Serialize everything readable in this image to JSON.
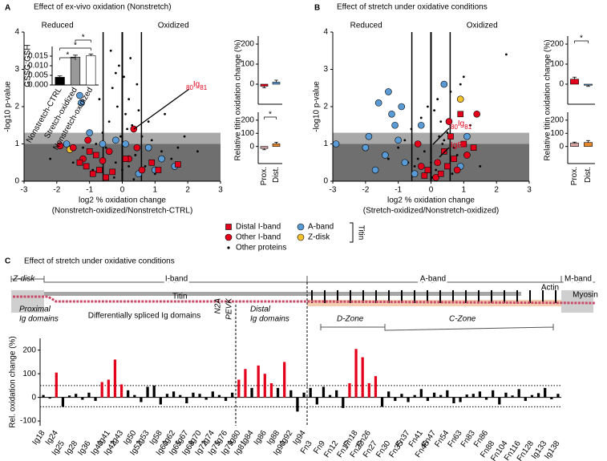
{
  "chart_data": [
    {
      "type": "scatter",
      "panel": "A",
      "title": "Effect of ex-vivo oxidation (Nonstretch)",
      "xlabel": "log2 % oxidation change",
      "xlabel2": "(Nonstretch-oxidized/Nonstretch-CTRL)",
      "ylabel": "-log10 p-value",
      "annotations": [
        "Reduced",
        "Oxidized"
      ],
      "callouts": [
        [
          "80",
          "Ig",
          "81"
        ]
      ],
      "callout_color": "#e3001b",
      "legend_title": "Titin",
      "xlim": [
        -3,
        3
      ],
      "xticks": [
        -3,
        -2,
        -1,
        0,
        1,
        2,
        3
      ],
      "ylim": [
        0,
        4
      ],
      "yticks": [
        0,
        1,
        2,
        3,
        4
      ],
      "bands": [
        {
          "from": 0,
          "to": 1,
          "color": "#6f6f6f"
        },
        {
          "from": 1,
          "to": 1.3,
          "color": "#a9a9a9"
        }
      ],
      "vlines": [
        -0.585,
        0.585
      ],
      "series": [
        {
          "name": "Distal I-band",
          "color": "#e3001b",
          "marker": "square",
          "x": [
            -1.3,
            -1.1,
            -0.9,
            -0.7,
            -0.5,
            -0.3,
            0.9,
            1.1,
            1.7,
            -0.8,
            -1.0,
            0.1
          ],
          "values": [
            0.5,
            0.4,
            0.2,
            0.3,
            0.1,
            0.25,
            0.5,
            0.3,
            0.45,
            0.7,
            0.8,
            0.6
          ]
        },
        {
          "name": "Other I-band",
          "color": "#e3001b",
          "marker": "circle",
          "x": [
            -1.9,
            -1.5,
            -1.2,
            -0.6,
            -0.4,
            0.2,
            0.45,
            -1.05,
            0.35,
            0.6
          ],
          "values": [
            0.95,
            0.9,
            0.6,
            0.55,
            0.8,
            0.6,
            0.9,
            1.1,
            1.4,
            0.3
          ]
        },
        {
          "name": "A-band",
          "color": "#5b9bd5",
          "marker": "circle",
          "x": [
            -1.3,
            -1.25,
            -1.0,
            -1.7,
            -0.2,
            0.1,
            0.8,
            1.2,
            1.6,
            0.5,
            1.0,
            -0.6
          ],
          "values": [
            2.3,
            2.1,
            1.3,
            1.0,
            1.1,
            1.0,
            0.9,
            0.6,
            0.4,
            0.2,
            0.3,
            1.0
          ]
        },
        {
          "name": "Z-disk",
          "color": "#f2c12e",
          "marker": "circle",
          "x": [
            -1.6
          ],
          "values": [
            0.85
          ]
        },
        {
          "name": "Other proteins",
          "color": "#000000",
          "marker": "dot",
          "x": [
            -0.2,
            -0.1,
            0.05,
            -0.3,
            0.2,
            -0.15,
            0.1,
            -0.4,
            0.3,
            -0.6,
            0.6,
            -0.8,
            0.9,
            -1.2,
            1.2,
            -1.5,
            1.5,
            0,
            -0.2,
            0.2,
            0.4,
            -0.5,
            0.7,
            -0.9,
            1.0,
            -0.05,
            0.15,
            0.5,
            0.8,
            1.9,
            2.3,
            -2.2,
            -0.35,
            0.25,
            1.3,
            -0.7,
            0.45,
            -0.25,
            0.35,
            1.7
          ],
          "values": [
            2.9,
            3.1,
            2.8,
            2.5,
            2.2,
            2.0,
            1.8,
            1.6,
            1.5,
            1.3,
            1.2,
            1.0,
            1.1,
            0.9,
            0.8,
            0.5,
            0.6,
            0.3,
            0.5,
            0.4,
            0.7,
            0.9,
            0.4,
            0.3,
            0.2,
            1.2,
            1.4,
            1.9,
            1.6,
            1.2,
            0.8,
            0.6,
            3.5,
            3.3,
            1.8,
            2.2,
            2.6,
            0.1,
            0.05,
            0.9
          ]
        }
      ]
    },
    {
      "type": "scatter",
      "panel": "B",
      "title": "Effect of stretch under oxidative conditions",
      "xlabel": "log2 % oxidation change",
      "xlabel2": "(Stretch-oxidized/Nonstretch-oxidized)",
      "ylabel": "-log10 p-value",
      "annotations": [
        "Reduced",
        "Oxidized"
      ],
      "callouts": [
        [
          "80",
          "Ig",
          "81"
        ],
        [
          "Ig80"
        ]
      ],
      "callout_color": "#e3001b",
      "xlim": [
        -3,
        3
      ],
      "xticks": [
        -3,
        -2,
        -1,
        0,
        1,
        2,
        3
      ],
      "ylim": [
        0,
        4
      ],
      "yticks": [
        0,
        1,
        2,
        3,
        4
      ],
      "bands": [
        {
          "from": 0,
          "to": 1,
          "color": "#6f6f6f"
        },
        {
          "from": 1,
          "to": 1.3,
          "color": "#a9a9a9"
        }
      ],
      "vlines": [
        -0.585,
        0.585
      ],
      "series": [
        {
          "color": "#e3001b",
          "marker": "square",
          "x": [
            0.9,
            1.0,
            0.7,
            0.5,
            0.3,
            -0.1,
            0.6,
            1.3,
            0.4,
            -0.2
          ],
          "values": [
            1.8,
            1.0,
            0.6,
            0.4,
            0.2,
            0.3,
            1.2,
            0.9,
            0.8,
            0.15
          ]
        },
        {
          "color": "#e3001b",
          "marker": "circle",
          "x": [
            1.4,
            1.1,
            0.8,
            0.15,
            -0.3,
            0.55,
            -0.4,
            0.2
          ],
          "values": [
            1.8,
            0.7,
            0.3,
            0.1,
            0.4,
            1.6,
            1.0,
            0.5
          ]
        },
        {
          "color": "#5b9bd5",
          "marker": "circle",
          "x": [
            -1.6,
            -1.3,
            -0.9,
            -1.2,
            -1.9,
            -1.0,
            -2.0,
            -1.4,
            -0.8,
            -1.7,
            -0.5,
            -2.9,
            -0.3,
            0.4,
            0.9,
            1.1,
            -1.1
          ],
          "values": [
            2.1,
            2.4,
            2.0,
            1.8,
            1.2,
            1.1,
            0.9,
            0.7,
            0.5,
            0.3,
            0.2,
            1.0,
            1.5,
            2.6,
            0.4,
            1.2,
            1.5
          ]
        },
        {
          "color": "#f2c12e",
          "marker": "circle",
          "x": [
            0.9
          ],
          "values": [
            2.2
          ]
        },
        {
          "color": "#000000",
          "marker": "dot",
          "x": [
            2.3,
            0.9,
            0.6,
            0.2,
            -0.3,
            -0.6,
            0.1,
            -0.1,
            0.3,
            0.5,
            -0.8,
            -1.0,
            1.2,
            0.7,
            0.4,
            -0.2,
            0,
            0.15,
            -0.4,
            0.8,
            1.5,
            -1.3,
            -0.5,
            0.25,
            -0.15,
            0.05,
            1.0,
            -0.7,
            0.35,
            0.65
          ],
          "values": [
            3.4,
            2.6,
            2.4,
            2.2,
            1.7,
            1.4,
            1.9,
            2.0,
            1.6,
            1.3,
            1.1,
            0.9,
            1.5,
            0.9,
            1.1,
            0.8,
            0.5,
            0.3,
            0.6,
            0.7,
            0.4,
            0.6,
            0.4,
            1.2,
            0.2,
            0.1,
            2.8,
            0.5,
            1.0,
            0.2
          ]
        }
      ]
    },
    {
      "type": "bar",
      "ylabel": "GSSG:GSH",
      "categories": [
        "Nonstretch-CTRL",
        "Stretch-oxidized",
        "Nonstretch-oxidized"
      ],
      "values": [
        0.004,
        0.0145,
        0.0152
      ],
      "errors": [
        0.0007,
        0.001,
        0.0009
      ],
      "colors": [
        "#000000",
        "#999999",
        "#ffffff"
      ],
      "ylim": [
        0,
        0.02
      ],
      "yticks": [
        {
          "value": 0,
          "label": "0.000"
        },
        0.005,
        {
          "value": 0.01,
          "label": "0.010"
        },
        0.015
      ],
      "annotations": [
        "*",
        "*",
        "*"
      ]
    },
    {
      "type": "bar",
      "ylabel": "Relative titin oxidation change (%)",
      "categories": [
        null,
        null
      ],
      "values": [
        -10,
        10
      ],
      "errors": [
        8,
        10
      ],
      "colors": [
        "#e3001b",
        "#5b9bd5"
      ],
      "ylim": [
        -100,
        240
      ],
      "yticks": [
        0,
        100,
        200
      ]
    },
    {
      "type": "bar",
      "categories": [
        "Prox.",
        "Dist."
      ],
      "values": [
        -15,
        20
      ],
      "errors": [
        10,
        12
      ],
      "colors": [
        "#d9a3a3",
        "#e8892e"
      ],
      "ylim": [
        -130,
        260
      ],
      "yticks": [
        0,
        100,
        200
      ],
      "annotations": [
        "*"
      ]
    },
    {
      "type": "bar",
      "ylabel": "Relative titin oxidation change (%)",
      "categories": [
        null,
        null
      ],
      "values": [
        25,
        -5
      ],
      "errors": [
        10,
        6
      ],
      "colors": [
        "#e3001b",
        "#5b9bd5"
      ],
      "ylim": [
        -100,
        240
      ],
      "yticks": [
        0,
        100,
        200
      ],
      "annotations": [
        "*"
      ]
    },
    {
      "type": "bar",
      "categories": [
        "Prox.",
        "Dist."
      ],
      "values": [
        25,
        30
      ],
      "errors": [
        8,
        15
      ],
      "colors": [
        "#d9a3a3",
        "#e8892e"
      ],
      "ylim": [
        -130,
        260
      ],
      "yticks": [
        0,
        100,
        200
      ]
    },
    {
      "type": "bar",
      "panel": "C",
      "title": "Effect of stretch under oxidative conditions",
      "ylabel": "Rel. oxidation change (%)",
      "color": "#000000",
      "highlight_color": "#e3001b",
      "hlines": [
        50,
        -40
      ],
      "ylim": [
        -120,
        250
      ],
      "yticks": [
        -100,
        0,
        100,
        200
      ],
      "categories": [
        "Ig18",
        null,
        "Ig24",
        "Ig25",
        null,
        "Ig28",
        null,
        "Ig36",
        null,
        "Ig40",
        "Ig41",
        "Ig42",
        "Ig43",
        null,
        "Ig50",
        "Ig52",
        "Ig53",
        null,
        "Ig58",
        "Ig60",
        "Ig62",
        "Ig65",
        "Ig67",
        "Ig68",
        "Ig70",
        "Ig72",
        "Ig74",
        "Ig75",
        "Ig76",
        "Ig79",
        "Ig80",
        "Ig81",
        "Ig84",
        null,
        "Ig86",
        null,
        "Ig88",
        "Ig90",
        "Ig92",
        null,
        "Ig94",
        "Fn3",
        null,
        "Fn9",
        null,
        "Fn12",
        null,
        "Fn17",
        "Fn18",
        "Fn22",
        "Fn26",
        "Fn27",
        null,
        "Fn30",
        null,
        "Fn35",
        "Fn37",
        null,
        "Fn41",
        "Fn46",
        "Fn47",
        null,
        "Fn54",
        null,
        "Fn63",
        null,
        "Fn83",
        null,
        "Fn86",
        "Fn88",
        null,
        "Fn104",
        null,
        "Fn116",
        null,
        "Fn128",
        null,
        "Ig133",
        null,
        "Ig138"
      ],
      "values": [
        10,
        -5,
        105,
        -40,
        8,
        15,
        -10,
        20,
        -15,
        65,
        75,
        160,
        55,
        30,
        10,
        -20,
        45,
        50,
        -30,
        15,
        25,
        10,
        -25,
        20,
        15,
        -10,
        25,
        10,
        -15,
        20,
        75,
        120,
        40,
        135,
        100,
        60,
        40,
        150,
        30,
        -60,
        20,
        40,
        -30,
        45,
        10,
        30,
        -45,
        60,
        205,
        170,
        60,
        90,
        -40,
        25,
        -15,
        15,
        -20,
        10,
        35,
        -15,
        20,
        10,
        30,
        -25,
        -20,
        12,
        15,
        25,
        -10,
        30,
        -30,
        20,
        8,
        35,
        -15,
        10,
        18,
        40,
        -8,
        15
      ]
    }
  ],
  "schematic": {
    "z_disk": "Z-disk",
    "i_band": "I-band",
    "a_band": "A-band",
    "m_band": "M-band",
    "titin": "Titin",
    "actin": "Actin",
    "myosin": "Myosin",
    "proximal": [
      "Proximal",
      "Ig domains"
    ],
    "spliced": "Differentially spliced Ig domains",
    "n2a": "N2A",
    "pevk": "PEVK",
    "distal": [
      "Distal",
      "Ig domains"
    ],
    "d_zone": "D-Zone",
    "c_zone": "C-Zone"
  }
}
